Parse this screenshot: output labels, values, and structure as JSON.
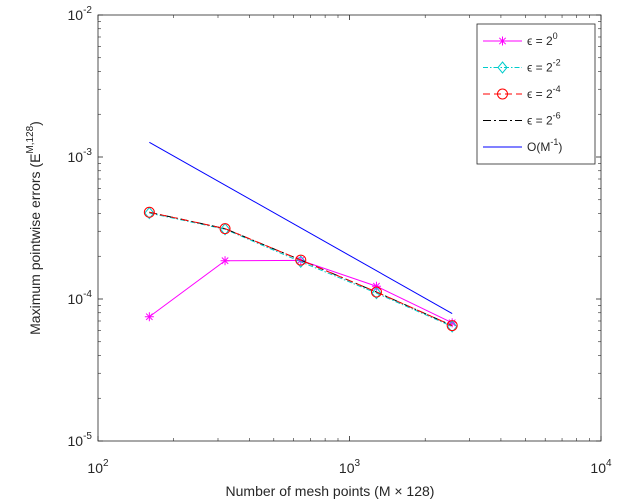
{
  "chart_data": {
    "type": "line",
    "xscale": "log",
    "yscale": "log",
    "xlim": [
      100,
      10000
    ],
    "ylim": [
      1e-05,
      0.01
    ],
    "xlabel": "Number of mesh points (M  × 128)",
    "ylabel": "Maximum pointwise errors (E",
    "ylabel_superscript": "M,128",
    "ylabel_suffix": ")",
    "x_ticks": [
      {
        "base": "10",
        "exp": "2",
        "value": 100
      },
      {
        "base": "10",
        "exp": "3",
        "value": 1000
      },
      {
        "base": "10",
        "exp": "4",
        "value": 10000
      }
    ],
    "y_ticks": [
      {
        "base": "10",
        "exp": "-5",
        "value": 1e-05
      },
      {
        "base": "10",
        "exp": "-4",
        "value": 0.0001
      },
      {
        "base": "10",
        "exp": "-3",
        "value": 0.001
      },
      {
        "base": "10",
        "exp": "-2",
        "value": 0.01
      }
    ],
    "grid": false,
    "legend_position": "top-right",
    "series": [
      {
        "label_text": "ϵ = 2",
        "label_sup": "0",
        "color": "#ff00ff",
        "dash": "",
        "marker": "asterisk",
        "x": [
          160,
          320,
          640,
          1280,
          2560
        ],
        "y": [
          7.5e-05,
          0.000186,
          0.000187,
          0.000123,
          6.8e-05
        ]
      },
      {
        "label_text": "ϵ = 2",
        "label_sup": "-2",
        "color": "#00cccc",
        "dash": "5,2,1.5,2",
        "marker": "diamond",
        "x": [
          160,
          320,
          640,
          1280,
          2560
        ],
        "y": [
          0.000403,
          0.00031,
          0.000183,
          0.00011,
          6.4e-05
        ]
      },
      {
        "label_text": "ϵ = 2",
        "label_sup": "-4",
        "color": "#ff0000",
        "dash": "7,4",
        "marker": "circle",
        "x": [
          160,
          320,
          640,
          1280,
          2560
        ],
        "y": [
          0.000408,
          0.000313,
          0.000188,
          0.000112,
          6.5e-05
        ]
      },
      {
        "label_text": "ϵ = 2",
        "label_sup": "-6",
        "color": "#000000",
        "dash": "8,3,2,3",
        "marker": "none",
        "x": [
          160,
          320,
          640,
          1280,
          2560
        ],
        "y": [
          0.000408,
          0.000313,
          0.000188,
          0.000112,
          6.5e-05
        ]
      },
      {
        "label_text": "O(M",
        "label_sup": "-1",
        "label_suffix": ")",
        "color": "#0000ff",
        "dash": "",
        "marker": "none",
        "x": [
          160,
          2560
        ],
        "y": [
          0.00127,
          7.9e-05
        ]
      }
    ]
  }
}
